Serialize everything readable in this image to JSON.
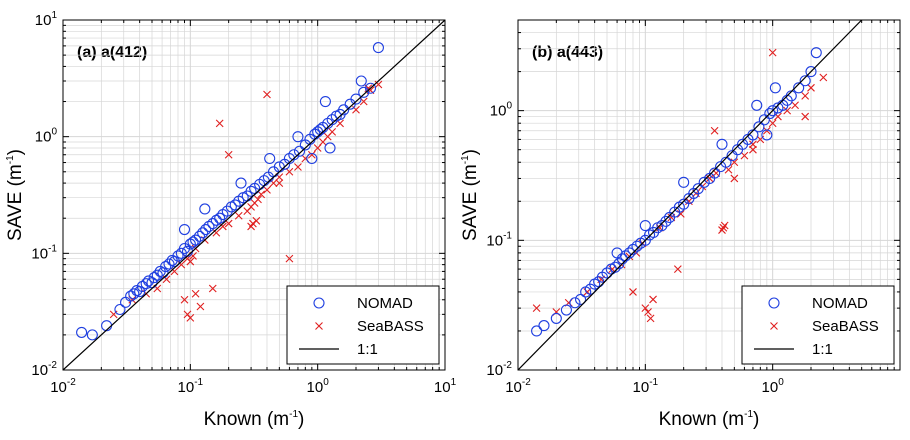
{
  "colors": {
    "nomad": "#1f3fe0",
    "seabass": "#e02020",
    "line": "#000000",
    "grid": "#d6d6d6",
    "frame": "#000000"
  },
  "icons": {
    "nomad": "circle-marker",
    "seabass": "x-marker"
  },
  "chart_data": [
    {
      "type": "scatter",
      "panel_label": "(a)  a(412)",
      "xlabel": "Known (m",
      "ylabel": "SAVE (m",
      "unit_exponent": "-1",
      "xscale": "log",
      "yscale": "log",
      "xlim": [
        0.01,
        10
      ],
      "ylim": [
        0.01,
        10
      ],
      "grid": true,
      "legend_position": "bottom-right",
      "x_ticks": [
        {
          "v": 0.01,
          "b": "10",
          "e": "-2"
        },
        {
          "v": 0.1,
          "b": "10",
          "e": "-1"
        },
        {
          "v": 1,
          "b": "10",
          "e": "0"
        },
        {
          "v": 10,
          "b": "10",
          "e": "1"
        }
      ],
      "y_ticks": [
        {
          "v": 0.01,
          "b": "10",
          "e": "-2"
        },
        {
          "v": 0.1,
          "b": "10",
          "e": "-1"
        },
        {
          "v": 1,
          "b": "10",
          "e": "0"
        },
        {
          "v": 10,
          "b": "10",
          "e": "1"
        }
      ],
      "series": [
        {
          "name": "NOMAD",
          "marker": "circle",
          "x": [
            0.014,
            0.017,
            0.022,
            0.028,
            0.031,
            0.034,
            0.036,
            0.038,
            0.04,
            0.042,
            0.045,
            0.047,
            0.05,
            0.052,
            0.055,
            0.058,
            0.061,
            0.064,
            0.068,
            0.072,
            0.075,
            0.08,
            0.085,
            0.09,
            0.095,
            0.1,
            0.105,
            0.11,
            0.118,
            0.125,
            0.132,
            0.14,
            0.15,
            0.16,
            0.17,
            0.18,
            0.195,
            0.21,
            0.225,
            0.24,
            0.26,
            0.28,
            0.3,
            0.32,
            0.35,
            0.38,
            0.41,
            0.45,
            0.5,
            0.55,
            0.6,
            0.65,
            0.72,
            0.8,
            0.87,
            0.95,
            1.0,
            1.05,
            1.1,
            1.2,
            1.3,
            1.4,
            1.5,
            1.6,
            1.8,
            2.0,
            2.3,
            2.6,
            3.0,
            0.09,
            0.13,
            0.25,
            0.42,
            0.7,
            1.15,
            1.25,
            0.9,
            2.2
          ],
          "y": [
            0.021,
            0.02,
            0.024,
            0.033,
            0.038,
            0.043,
            0.045,
            0.048,
            0.047,
            0.052,
            0.055,
            0.058,
            0.056,
            0.062,
            0.065,
            0.07,
            0.068,
            0.077,
            0.081,
            0.087,
            0.085,
            0.095,
            0.1,
            0.11,
            0.104,
            0.12,
            0.125,
            0.13,
            0.14,
            0.15,
            0.16,
            0.17,
            0.18,
            0.192,
            0.2,
            0.215,
            0.23,
            0.25,
            0.26,
            0.28,
            0.3,
            0.31,
            0.34,
            0.36,
            0.39,
            0.42,
            0.45,
            0.5,
            0.55,
            0.58,
            0.65,
            0.7,
            0.75,
            0.85,
            0.95,
            1.05,
            1.1,
            1.15,
            1.2,
            1.3,
            1.4,
            1.5,
            1.55,
            1.7,
            1.9,
            2.1,
            2.4,
            2.6,
            5.8,
            0.16,
            0.24,
            0.4,
            0.65,
            1.0,
            2.0,
            0.8,
            0.65,
            3.0
          ]
        },
        {
          "name": "SeaBASS",
          "marker": "x",
          "x": [
            0.025,
            0.035,
            0.045,
            0.055,
            0.065,
            0.075,
            0.085,
            0.095,
            0.1,
            0.105,
            0.11,
            0.13,
            0.16,
            0.18,
            0.2,
            0.24,
            0.28,
            0.3,
            0.32,
            0.34,
            0.36,
            0.4,
            0.45,
            0.5,
            0.6,
            0.7,
            0.8,
            0.9,
            1.0,
            1.1,
            1.2,
            1.3,
            1.5,
            2.0,
            2.3,
            2.6,
            3.0,
            0.09,
            0.095,
            0.1,
            0.11,
            0.12,
            0.3,
            0.31,
            0.33,
            0.6,
            0.17,
            0.2,
            0.5,
            0.4,
            2.5,
            0.15
          ],
          "y": [
            0.03,
            0.04,
            0.045,
            0.05,
            0.06,
            0.07,
            0.08,
            0.09,
            0.085,
            0.095,
            0.11,
            0.13,
            0.15,
            0.17,
            0.18,
            0.21,
            0.23,
            0.25,
            0.27,
            0.29,
            0.32,
            0.35,
            0.4,
            0.45,
            0.5,
            0.55,
            0.65,
            0.7,
            0.8,
            0.9,
            1.0,
            1.1,
            1.3,
            1.7,
            2.0,
            2.5,
            2.8,
            0.04,
            0.03,
            0.028,
            0.045,
            0.035,
            0.17,
            0.18,
            0.19,
            0.09,
            1.3,
            0.7,
            0.4,
            2.3,
            2.6,
            0.05
          ]
        }
      ],
      "reference_line": {
        "name": "1:1",
        "slope": 1
      }
    },
    {
      "type": "scatter",
      "panel_label": "(b)  a(443)",
      "xlabel": "Known (m",
      "ylabel": "SAVE (m",
      "unit_exponent": "-1",
      "xscale": "log",
      "yscale": "log",
      "xlim": [
        0.01,
        10
      ],
      "ylim": [
        0.01,
        5
      ],
      "grid": true,
      "legend_position": "bottom-right",
      "x_ticks": [
        {
          "v": 0.01,
          "b": "10",
          "e": "-2"
        },
        {
          "v": 0.1,
          "b": "10",
          "e": "-1"
        },
        {
          "v": 1,
          "b": "10",
          "e": "0"
        }
      ],
      "y_ticks": [
        {
          "v": 0.01,
          "b": "10",
          "e": "-2"
        },
        {
          "v": 0.1,
          "b": "10",
          "e": "-1"
        },
        {
          "v": 1,
          "b": "10",
          "e": "0"
        }
      ],
      "series": [
        {
          "name": "NOMAD",
          "marker": "circle",
          "x": [
            0.014,
            0.016,
            0.02,
            0.024,
            0.028,
            0.031,
            0.034,
            0.037,
            0.04,
            0.043,
            0.046,
            0.05,
            0.054,
            0.058,
            0.062,
            0.066,
            0.07,
            0.075,
            0.08,
            0.086,
            0.092,
            0.1,
            0.108,
            0.116,
            0.125,
            0.135,
            0.145,
            0.155,
            0.17,
            0.185,
            0.2,
            0.22,
            0.24,
            0.26,
            0.29,
            0.32,
            0.35,
            0.39,
            0.43,
            0.48,
            0.53,
            0.58,
            0.64,
            0.7,
            0.78,
            0.86,
            0.95,
            1.0,
            1.1,
            1.2,
            1.3,
            1.4,
            1.6,
            1.8,
            2.0,
            2.2,
            0.06,
            0.1,
            0.2,
            0.4,
            0.75,
            1.05,
            0.9
          ],
          "y": [
            0.02,
            0.022,
            0.025,
            0.029,
            0.033,
            0.035,
            0.04,
            0.042,
            0.046,
            0.048,
            0.052,
            0.056,
            0.06,
            0.062,
            0.066,
            0.072,
            0.076,
            0.08,
            0.085,
            0.09,
            0.095,
            0.1,
            0.11,
            0.115,
            0.125,
            0.13,
            0.14,
            0.15,
            0.165,
            0.18,
            0.19,
            0.21,
            0.23,
            0.25,
            0.28,
            0.3,
            0.33,
            0.37,
            0.4,
            0.45,
            0.5,
            0.55,
            0.6,
            0.65,
            0.75,
            0.85,
            0.95,
            1.0,
            1.05,
            1.1,
            1.2,
            1.3,
            1.5,
            1.7,
            2.0,
            2.8,
            0.08,
            0.13,
            0.28,
            0.55,
            1.1,
            1.5,
            0.65
          ]
        },
        {
          "name": "SeaBASS",
          "marker": "x",
          "x": [
            0.014,
            0.02,
            0.025,
            0.035,
            0.045,
            0.055,
            0.065,
            0.075,
            0.085,
            0.095,
            0.1,
            0.105,
            0.11,
            0.115,
            0.13,
            0.16,
            0.19,
            0.22,
            0.25,
            0.28,
            0.32,
            0.36,
            0.4,
            0.41,
            0.42,
            0.45,
            0.5,
            0.6,
            0.7,
            0.8,
            0.9,
            1.0,
            1.1,
            1.3,
            1.5,
            1.8,
            2.0,
            2.5,
            0.08,
            0.18,
            0.35,
            0.5,
            1.0,
            0.7,
            1.8
          ],
          "y": [
            0.03,
            0.028,
            0.033,
            0.04,
            0.05,
            0.06,
            0.065,
            0.075,
            0.08,
            0.095,
            0.03,
            0.028,
            0.025,
            0.035,
            0.125,
            0.15,
            0.16,
            0.2,
            0.23,
            0.26,
            0.3,
            0.33,
            0.12,
            0.125,
            0.13,
            0.35,
            0.4,
            0.45,
            0.5,
            0.6,
            0.7,
            0.8,
            0.9,
            1.0,
            1.1,
            1.3,
            1.5,
            1.8,
            0.04,
            0.06,
            0.7,
            0.3,
            2.8,
            0.55,
            0.9
          ]
        }
      ],
      "reference_line": {
        "name": "1:1",
        "slope": 1
      }
    }
  ]
}
